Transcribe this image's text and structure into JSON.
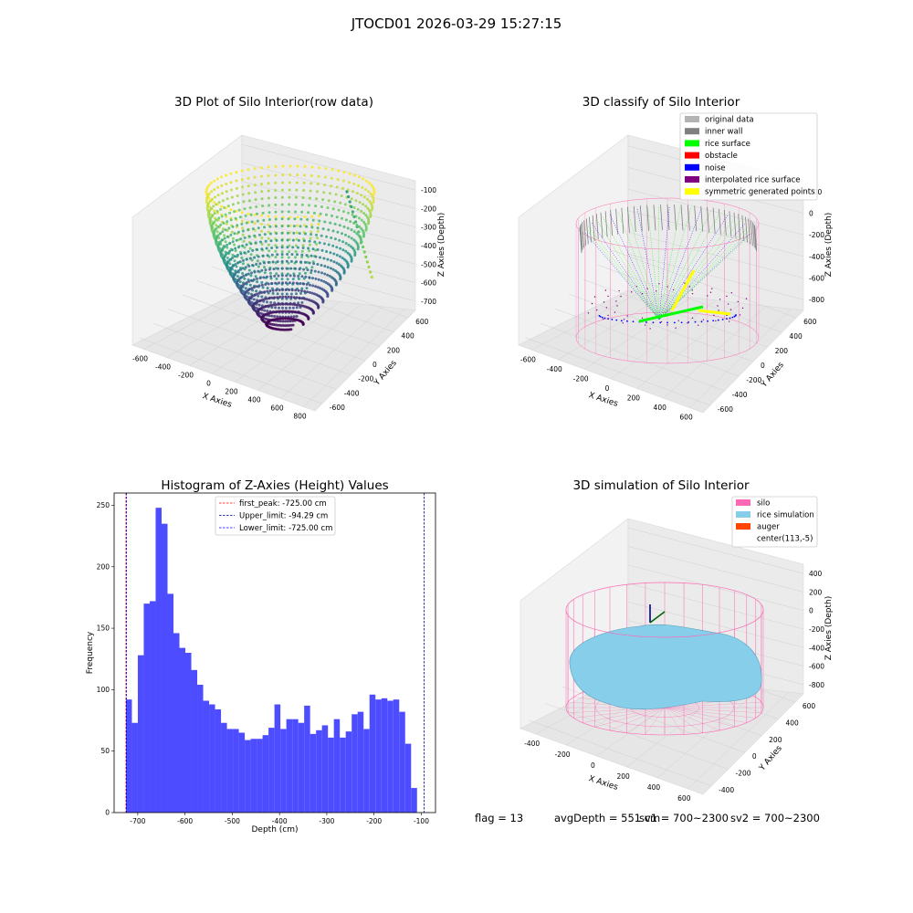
{
  "suptitle": "JTOCD01 2026-03-29 15:27:15",
  "footer": {
    "flag": "flag = 13",
    "avg_depth": "avgDepth = 551 cm",
    "sv1": "sv1 = 700~2300",
    "sv2": "sv2 = 700~2300"
  },
  "colors": {
    "histogram_bar": "#4d4dff",
    "first_peak_line": "#ff0000",
    "upper_limit_line": "#00008b",
    "lower_limit_line": "#0000ff",
    "silo": "#ff69b4",
    "rice_simulation": "#87ceeb",
    "auger": "#ff4500",
    "original_data": "#b3b3b3",
    "inner_wall": "#808080",
    "rice_surface": "#00ff00",
    "obstacle": "#ff0000",
    "noise": "#0000ff",
    "interpolated_rice_surface": "#800080",
    "symmetric_generated_points": "#ffff00"
  },
  "chart_data": [
    {
      "type": "scatter3d",
      "title": "3D Plot of Silo Interior(row data)",
      "xlabel": "X Axies",
      "ylabel": "Y Axies",
      "zlabel": "Z Axies (Depth)",
      "x_ticks": [
        "-600",
        "-400",
        "-200",
        "0",
        "200",
        "400",
        "600",
        "800"
      ],
      "y_ticks": [
        "-600",
        "-400",
        "-200",
        "0",
        "200",
        "400",
        "600"
      ],
      "z_ticks": [
        "-700",
        "-600",
        "-500",
        "-400",
        "-300",
        "-200",
        "-100"
      ],
      "colormap": "viridis"
    },
    {
      "type": "scatter3d",
      "title": "3D classify of Silo Interior",
      "xlabel": "X Axies",
      "ylabel": "Y Axies",
      "zlabel": "Z Axies (Depth)",
      "x_ticks": [
        "-600",
        "-400",
        "-200",
        "0",
        "200",
        "400",
        "600"
      ],
      "y_ticks": [
        "-600",
        "-400",
        "-200",
        "0",
        "200",
        "400",
        "600"
      ],
      "z_ticks": [
        "-800",
        "-600",
        "-400",
        "-200",
        "0",
        "200"
      ],
      "legend": [
        {
          "label": "original data",
          "color": "#b3b3b3"
        },
        {
          "label": "inner wall",
          "color": "#808080"
        },
        {
          "label": "rice surface",
          "color": "#00ff00"
        },
        {
          "label": "obstacle",
          "color": "#ff0000"
        },
        {
          "label": "noise",
          "color": "#0000ff"
        },
        {
          "label": "interpolated rice surface",
          "color": "#800080"
        },
        {
          "label": "symmetric generated points",
          "color": "#ffff00"
        }
      ],
      "legend_loc": "upper-right"
    },
    {
      "type": "bar",
      "title": "Histogram of Z-Axies (Height) Values",
      "xlabel": "Depth (cm)",
      "ylabel": "Frequency",
      "xlim": [
        -750,
        -70
      ],
      "ylim": [
        0,
        260
      ],
      "x_ticks": [
        -700,
        -600,
        -500,
        -400,
        -300,
        -200,
        -100
      ],
      "y_ticks": [
        0,
        50,
        100,
        150,
        200,
        250
      ],
      "bin_start": -725,
      "bin_width": 12.57,
      "values": [
        92,
        73,
        128,
        170,
        172,
        248,
        235,
        178,
        146,
        134,
        130,
        116,
        104,
        91,
        88,
        84,
        73,
        68,
        68,
        65,
        59,
        60,
        60,
        63,
        69,
        88,
        68,
        76,
        76,
        73,
        87,
        64,
        67,
        71,
        61,
        76,
        61,
        66,
        80,
        82,
        68,
        96,
        92,
        93,
        91,
        92,
        82,
        56,
        20
      ],
      "lines": [
        {
          "label": "first_peak: -725.00 cm",
          "x": -725.0,
          "color": "#ff0000"
        },
        {
          "label": "Upper_limit: -94.29 cm",
          "x": -94.29,
          "color": "#00008b"
        },
        {
          "label": "Lower_limit: -725.00 cm",
          "x": -725.0,
          "color": "#0000ff"
        }
      ],
      "legend_loc": "upper-center"
    },
    {
      "type": "surface3d",
      "title": "3D simulation of Silo Interior",
      "xlabel": "X Axies",
      "ylabel": "Y Axies",
      "zlabel": "Z Axies (Depth)",
      "x_ticks": [
        "-400",
        "-200",
        "0",
        "200",
        "400",
        "600"
      ],
      "y_ticks": [
        "-400",
        "-200",
        "0",
        "200",
        "400",
        "600"
      ],
      "z_ticks": [
        "-800",
        "-600",
        "-400",
        "-200",
        "0",
        "200",
        "400"
      ],
      "legend": [
        {
          "label": "silo",
          "color": "#ff69b4"
        },
        {
          "label": "rice simulation",
          "color": "#87ceeb"
        },
        {
          "label": "auger",
          "color": "#ff4500"
        },
        {
          "label": "center(113,-5)",
          "color": ""
        }
      ],
      "legend_loc": "upper-right"
    }
  ]
}
